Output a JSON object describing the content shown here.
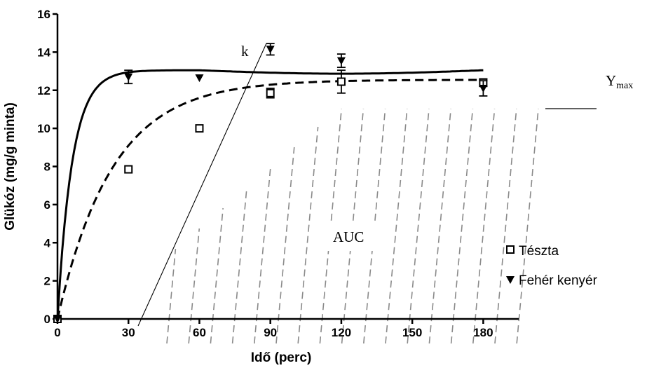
{
  "chart_data": {
    "type": "scatter",
    "xlabel": "Idő (perc)",
    "ylabel": "Glükóz (mg/g minta)",
    "xlim": [
      0,
      195
    ],
    "ylim": [
      0,
      16
    ],
    "x_ticks": [
      0,
      30,
      60,
      90,
      120,
      150,
      180
    ],
    "y_ticks": [
      0,
      2,
      4,
      6,
      8,
      10,
      12,
      14,
      16
    ],
    "grid": false,
    "legend_position": "right",
    "series": [
      {
        "name": "Tészta",
        "marker": "open-square",
        "color": "#000000",
        "x": [
          0,
          30,
          60,
          90,
          120,
          180
        ],
        "y": [
          0,
          7.85,
          10.0,
          11.85,
          12.45,
          12.4
        ],
        "error": [
          0,
          0,
          0,
          0.25,
          0.6,
          0.2
        ],
        "fit": {
          "style": "dashed",
          "ymax": 12.55,
          "k": 0.043
        }
      },
      {
        "name": "Fehér kenyér",
        "marker": "filled-triangle-down",
        "color": "#000000",
        "x": [
          0,
          30,
          60,
          90,
          120,
          180
        ],
        "y": [
          0,
          12.7,
          12.65,
          14.15,
          13.55,
          12.1
        ],
        "error": [
          0,
          0.35,
          0,
          0.3,
          0.35,
          0.4
        ],
        "fit": {
          "style": "solid",
          "ymax": 13.05,
          "k": 0.16
        }
      }
    ],
    "annotations": {
      "k": "k",
      "ymax_main": "Y",
      "ymax_sub": "max",
      "auc": "AUC"
    }
  }
}
